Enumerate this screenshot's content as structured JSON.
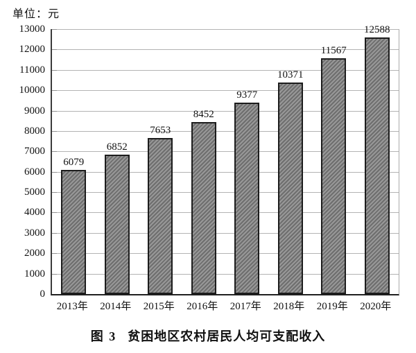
{
  "unit_label": "单位：元",
  "caption": {
    "prefix": "图 3",
    "title": "贫困地区农村居民人均可支配收入"
  },
  "chart_data": {
    "type": "bar",
    "title": "图 3 贫困地区农村居民人均可支配收入",
    "unit": "元",
    "categories": [
      "2013年",
      "2014年",
      "2015年",
      "2016年",
      "2017年",
      "2018年",
      "2019年",
      "2020年"
    ],
    "values": [
      6079,
      6852,
      7653,
      8452,
      9377,
      10371,
      11567,
      12588
    ],
    "ylim": [
      0,
      13000
    ],
    "ytick_interval": 1000,
    "grid": true,
    "legend": false,
    "bar_hatch": "diagonal-forward",
    "colors": {
      "bar_fill": "#989898",
      "bar_hatch_line": "#6e6e6e",
      "bar_border": "#1c1c1c",
      "gridline": "#b3b3b3",
      "tick": "#8f8f8f",
      "axis": "#3a3a3a",
      "text": "#111111"
    }
  }
}
